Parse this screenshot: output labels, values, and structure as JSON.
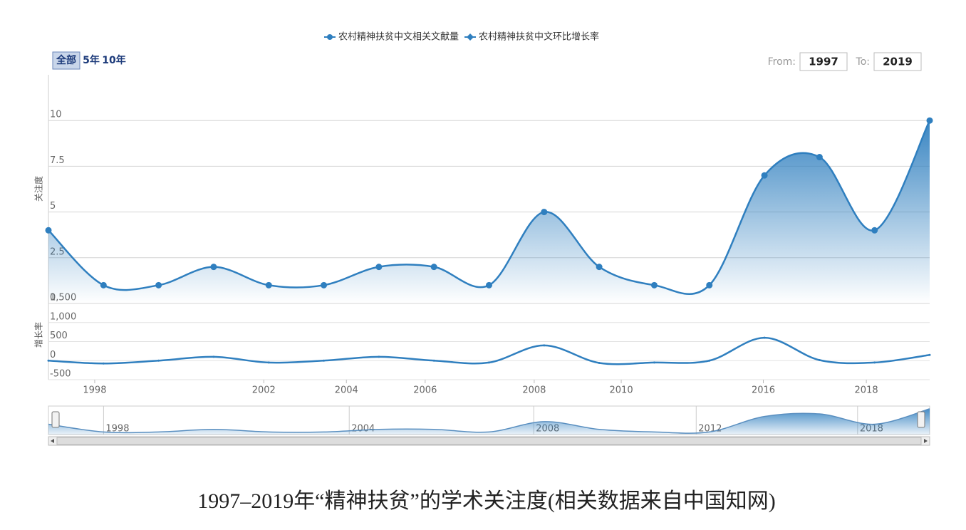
{
  "chart_data": {
    "type": "line",
    "title": "1997–2019年“精神扶贫”的学术关注度(相关数据来自中国知网)",
    "range_buttons": [
      "全部",
      "5年",
      "10年"
    ],
    "from_label": "From:",
    "from_value": "1997",
    "to_label": "To:",
    "to_value": "2019",
    "ylabel": "关注度",
    "y2label": "增长率",
    "categories": [
      null,
      null,
      null,
      null,
      null,
      null,
      null,
      null,
      null,
      null,
      null,
      null,
      null,
      null,
      null,
      null,
      null
    ],
    "xticks": [
      {
        "value": 0.84,
        "label": "1998"
      },
      {
        "value": 3.91,
        "label": "2002"
      },
      {
        "value": 5.41,
        "label": "2004"
      },
      {
        "value": 6.84,
        "label": "2006"
      },
      {
        "value": 8.82,
        "label": "2008"
      },
      {
        "value": 10.4,
        "label": "2010"
      },
      {
        "value": 12.98,
        "label": "2016"
      },
      {
        "value": 14.85,
        "label": "2018"
      }
    ],
    "navigator_xticks": [
      {
        "value": 1.04,
        "label": "1998"
      },
      {
        "value": 5.5,
        "label": "2004"
      },
      {
        "value": 8.85,
        "label": "2008"
      },
      {
        "value": 11.8,
        "label": "2012"
      },
      {
        "value": 14.73,
        "label": "2018"
      }
    ],
    "ylim": [
      0,
      12.5
    ],
    "yticks": [
      0,
      2.5,
      5,
      7.5,
      10
    ],
    "y2lim": [
      -500,
      1500
    ],
    "y2ticks": [
      -500,
      0,
      500,
      {
        "value": 1000,
        "label": "1,000"
      },
      {
        "value": 1500,
        "label": "1,500"
      }
    ],
    "grid": true,
    "legend": "top",
    "series": [
      {
        "name": "农村精神扶贫中文相关文献量",
        "color": "#2f7fbf",
        "values": [
          4,
          1,
          1,
          2,
          1,
          1,
          2,
          2,
          1,
          5,
          2,
          1,
          1,
          7,
          8,
          4,
          10
        ]
      },
      {
        "name": "农村精神扶贫中文环比增长率",
        "color": "#2f7fbf",
        "axis": "y2",
        "values": [
          0,
          -75,
          0,
          100,
          -50,
          0,
          100,
          0,
          -50,
          400,
          -60,
          -50,
          0,
          600,
          14,
          -50,
          150
        ]
      }
    ]
  }
}
